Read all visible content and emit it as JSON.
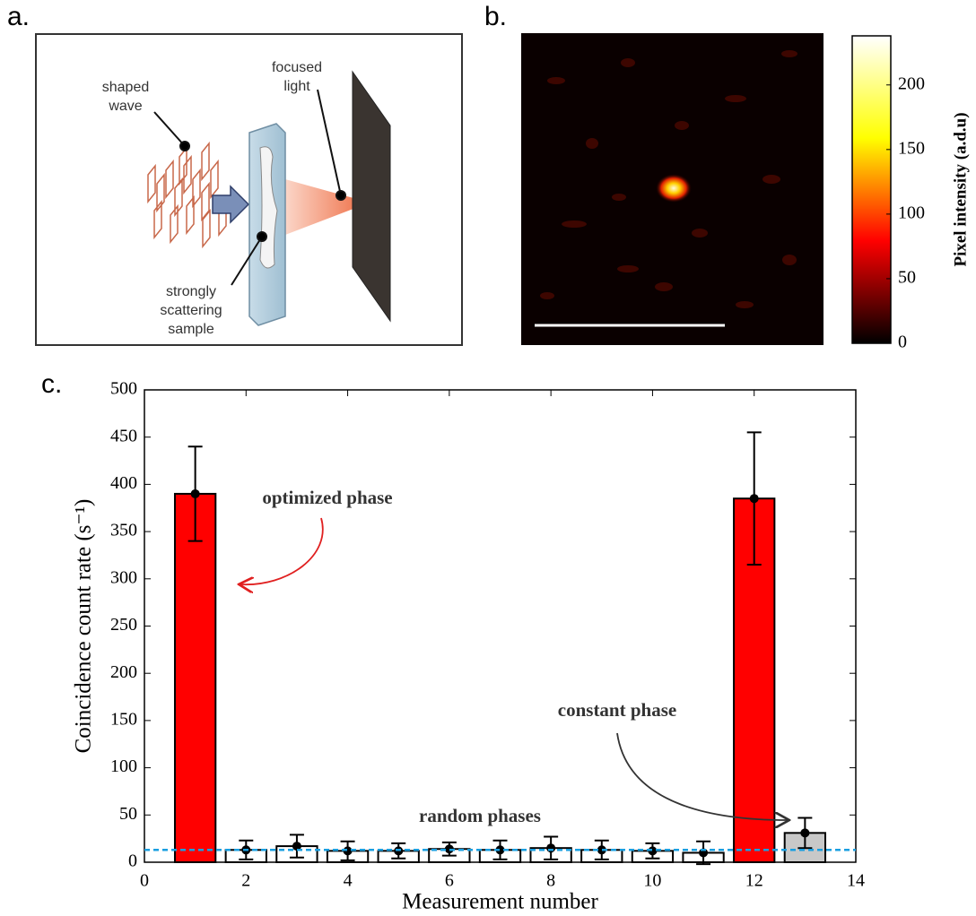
{
  "diagram": {
    "panel_label": "a.",
    "labels": {
      "shaped_wave": [
        "shaped",
        "wave"
      ],
      "focused_light": [
        "focused",
        "light"
      ],
      "sample": [
        "strongly",
        "scattering",
        "sample"
      ]
    }
  },
  "chart_data": [
    {
      "type": "heatmap",
      "panel_label": "b.",
      "colorbar_label": "Pixel intensity (a.d.u)",
      "colormap": "hot",
      "clim": [
        0,
        238
      ],
      "cticks": [
        0,
        50,
        100,
        150,
        200
      ]
    },
    {
      "type": "bar",
      "panel_label": "c.",
      "xlabel": "Measurement number",
      "ylabel": "Coincidence count rate (s⁻¹)",
      "x": [
        1,
        2,
        3,
        4,
        5,
        6,
        7,
        8,
        9,
        10,
        11,
        12,
        13
      ],
      "values": [
        390,
        13,
        17,
        12,
        12,
        14,
        13,
        15,
        13,
        12,
        10,
        385,
        31
      ],
      "errors": [
        50,
        10,
        12,
        10,
        8,
        7,
        10,
        12,
        10,
        8,
        12,
        70,
        16
      ],
      "colors": [
        "#ff0000",
        "#ffffff",
        "#ffffff",
        "#ffffff",
        "#ffffff",
        "#ffffff",
        "#ffffff",
        "#ffffff",
        "#ffffff",
        "#ffffff",
        "#ffffff",
        "#ff0000",
        "#c8c8c8"
      ],
      "reference_line": 13,
      "reference_color": "#1a9fe0",
      "xlim": [
        0,
        14
      ],
      "xticks": [
        0,
        2,
        4,
        6,
        8,
        10,
        12,
        14
      ],
      "ylim": [
        0,
        500
      ],
      "yticks": [
        0,
        50,
        100,
        150,
        200,
        250,
        300,
        350,
        400,
        450,
        500
      ],
      "annotations": [
        "optimized phase",
        "constant phase",
        "random phases"
      ]
    }
  ]
}
